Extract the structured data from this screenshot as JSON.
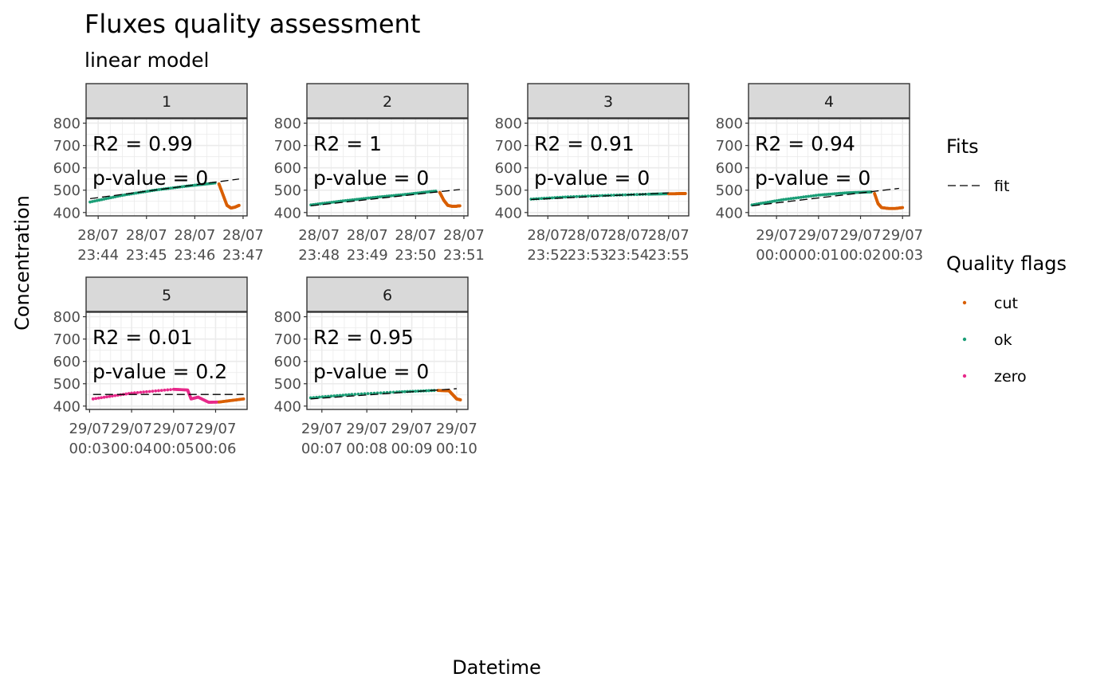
{
  "title": "Fluxes quality assessment",
  "subtitle": "linear model",
  "xlabel": "Datetime",
  "ylabel": "Concentration",
  "legend": {
    "placement": "right",
    "fits_title": "Fits",
    "fits_items": [
      {
        "label": "fit",
        "style": "dashed",
        "color": "#000000"
      }
    ],
    "flags_title": "Quality flags",
    "flags_items": [
      {
        "label": "cut",
        "color": "#D95F02"
      },
      {
        "label": "ok",
        "color": "#1B9E77"
      },
      {
        "label": "zero",
        "color": "#E7298A"
      }
    ]
  },
  "chart_data": [
    {
      "type": "scatter",
      "panel": "1",
      "ylim": [
        385,
        820
      ],
      "y_ticks": [
        400,
        500,
        600,
        700,
        800
      ],
      "grid": true,
      "annotation": [
        "ok",
        "R2 = 0.99",
        "p-value = 0"
      ],
      "xlim": [
        "23:43:45",
        "23:47:05"
      ],
      "x_ticks": [
        [
          "28/07",
          "23:44"
        ],
        [
          "28/07",
          "23:45"
        ],
        [
          "28/07",
          "23:46"
        ],
        [
          "28/07",
          "23:47"
        ]
      ],
      "fit": {
        "x": [
          "23:43:50",
          "23:46:55"
        ],
        "y": [
          462,
          550
        ]
      },
      "series": [
        {
          "name": "ok",
          "x": [
            "23:43:50",
            "23:44:30",
            "23:45:10",
            "23:45:50",
            "23:46:25"
          ],
          "y": [
            447,
            477,
            500,
            518,
            532
          ]
        },
        {
          "name": "cut",
          "x": [
            "23:46:30",
            "23:46:35",
            "23:46:40",
            "23:46:45",
            "23:46:50",
            "23:46:55"
          ],
          "y": [
            528,
            480,
            432,
            420,
            424,
            432
          ]
        }
      ]
    },
    {
      "type": "scatter",
      "panel": "2",
      "ylim": [
        385,
        820
      ],
      "y_ticks": [
        400,
        500,
        600,
        700,
        800
      ],
      "grid": true,
      "annotation": [
        "ok",
        "R2 = 1",
        "p-value = 0"
      ],
      "xlim": [
        "23:47:45",
        "23:51:05"
      ],
      "x_ticks": [
        [
          "28/07",
          "23:48"
        ],
        [
          "28/07",
          "23:49"
        ],
        [
          "28/07",
          "23:50"
        ],
        [
          "28/07",
          "23:51"
        ]
      ],
      "fit": {
        "x": [
          "23:47:50",
          "23:50:55"
        ],
        "y": [
          430,
          503
        ]
      },
      "series": [
        {
          "name": "ok",
          "x": [
            "23:47:50",
            "23:48:30",
            "23:49:10",
            "23:49:50",
            "23:50:25"
          ],
          "y": [
            434,
            452,
            468,
            482,
            496
          ]
        },
        {
          "name": "cut",
          "x": [
            "23:50:30",
            "23:50:35",
            "23:50:40",
            "23:50:45",
            "23:50:50",
            "23:50:55"
          ],
          "y": [
            490,
            455,
            432,
            428,
            428,
            430
          ]
        }
      ]
    },
    {
      "type": "scatter",
      "panel": "3",
      "ylim": [
        385,
        820
      ],
      "y_ticks": [
        400,
        500,
        600,
        700,
        800
      ],
      "grid": true,
      "annotation": [
        "ok",
        "R2 = 0.91",
        "p-value = 0"
      ],
      "xlim": [
        "23:51:30",
        "23:55:30"
      ],
      "x_ticks": [
        [
          "28/07",
          "23:52"
        ],
        [
          "28/07",
          "23:53"
        ],
        [
          "28/07",
          "23:54"
        ],
        [
          "28/07",
          "23:55"
        ]
      ],
      "fit": {
        "x": [
          "23:51:35",
          "23:55:00"
        ],
        "y": [
          458,
          488
        ]
      },
      "series": [
        {
          "name": "ok",
          "x": [
            "23:51:35",
            "23:52:30",
            "23:53:30",
            "23:54:30",
            "23:55:00"
          ],
          "y": [
            460,
            470,
            477,
            482,
            484
          ]
        },
        {
          "name": "cut",
          "x": [
            "23:55:00",
            "23:55:10",
            "23:55:20",
            "23:55:25"
          ],
          "y": [
            484,
            484,
            485,
            485
          ]
        }
      ]
    },
    {
      "type": "scatter",
      "panel": "4",
      "ylim": [
        385,
        820
      ],
      "y_ticks": [
        400,
        500,
        600,
        700,
        800
      ],
      "grid": true,
      "annotation": [
        "ok",
        "R2 = 0.94",
        "p-value = 0"
      ],
      "xlim": [
        "23:59:20",
        "00:03:10"
      ],
      "x_ticks": [
        [
          "29/07",
          "00:00"
        ],
        [
          "29/07",
          "00:01"
        ],
        [
          "29/07",
          "00:02"
        ],
        [
          "29/07",
          "00:03"
        ]
      ],
      "fit": {
        "x": [
          "23:59:25",
          "00:02:55"
        ],
        "y": [
          430,
          508
        ]
      },
      "series": [
        {
          "name": "ok",
          "x": [
            "23:59:25",
            "00:00:10",
            "00:01:00",
            "00:01:40",
            "00:02:15"
          ],
          "y": [
            434,
            458,
            478,
            488,
            492
          ]
        },
        {
          "name": "cut",
          "x": [
            "00:02:20",
            "00:02:25",
            "00:02:30",
            "00:02:40",
            "00:02:50",
            "00:03:00"
          ],
          "y": [
            485,
            440,
            422,
            418,
            418,
            422
          ]
        }
      ]
    },
    {
      "type": "scatter",
      "panel": "5",
      "ylim": [
        385,
        820
      ],
      "y_ticks": [
        400,
        500,
        600,
        700,
        800
      ],
      "grid": true,
      "annotation": [
        "zero",
        "R2 = 0.01",
        "p-value = 0.2"
      ],
      "xlim": [
        "00:02:55",
        "00:06:45"
      ],
      "x_ticks": [
        [
          "29/07",
          "00:03"
        ],
        [
          "29/07",
          "00:04"
        ],
        [
          "29/07",
          "00:05"
        ],
        [
          "29/07",
          "00:06"
        ]
      ],
      "fit": {
        "x": [
          "00:03:05",
          "00:06:40"
        ],
        "y": [
          452,
          452
        ]
      },
      "series": [
        {
          "name": "zero",
          "x": [
            "00:03:05",
            "00:04:00",
            "00:05:00",
            "00:05:20",
            "00:05:25",
            "00:05:35",
            "00:05:50",
            "00:06:05"
          ],
          "y": [
            432,
            458,
            475,
            472,
            432,
            440,
            417,
            418
          ]
        },
        {
          "name": "cut",
          "x": [
            "00:06:05",
            "00:06:20",
            "00:06:40"
          ],
          "y": [
            418,
            424,
            432
          ]
        }
      ]
    },
    {
      "type": "scatter",
      "panel": "6",
      "ylim": [
        385,
        820
      ],
      "y_ticks": [
        400,
        500,
        600,
        700,
        800
      ],
      "grid": true,
      "annotation": [
        "ok",
        "R2 = 0.95",
        "p-value = 0"
      ],
      "xlim": [
        "00:06:40",
        "00:10:15"
      ],
      "x_ticks": [
        [
          "29/07",
          "00:07"
        ],
        [
          "29/07",
          "00:08"
        ],
        [
          "29/07",
          "00:09"
        ],
        [
          "29/07",
          "00:10"
        ]
      ],
      "fit": {
        "x": [
          "00:06:45",
          "00:10:00"
        ],
        "y": [
          432,
          478
        ]
      },
      "series": [
        {
          "name": "ok",
          "x": [
            "00:06:45",
            "00:07:40",
            "00:08:40",
            "00:09:30"
          ],
          "y": [
            437,
            452,
            463,
            470
          ]
        },
        {
          "name": "cut",
          "x": [
            "00:09:35",
            "00:09:50",
            "00:09:55",
            "00:10:00",
            "00:10:05"
          ],
          "y": [
            470,
            468,
            450,
            432,
            428
          ]
        }
      ]
    }
  ]
}
